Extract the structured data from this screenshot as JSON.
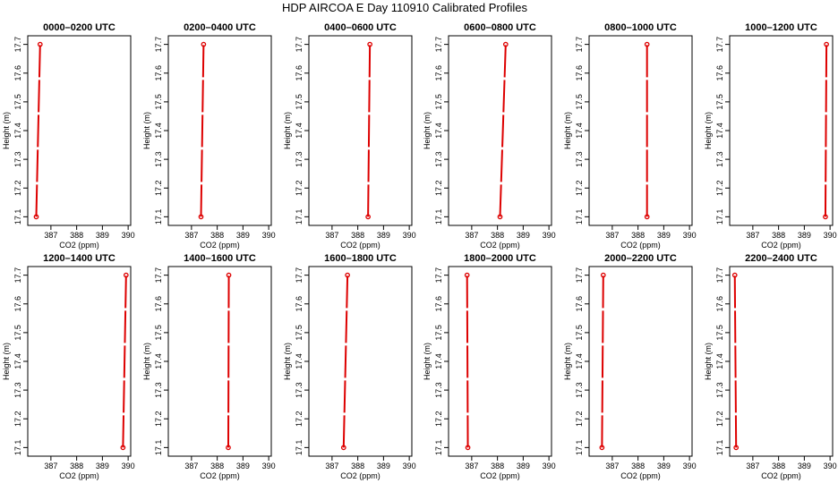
{
  "figure": {
    "title": "HDP AIRCOA E  Day 110910  Calibrated Profiles"
  },
  "chart_data": [
    {
      "type": "line",
      "title": "0000–0200 UTC",
      "xlabel": "CO2 (ppm)",
      "ylabel": "Height (m)",
      "xlim": [
        386.1,
        390.1
      ],
      "ylim": [
        17.07,
        17.73
      ],
      "x_ticks": [
        387,
        388,
        389,
        390
      ],
      "x_tick_labels": [
        "387",
        "388",
        "389",
        "390"
      ],
      "y_ticks": [
        17.1,
        17.2,
        17.3,
        17.4,
        17.5,
        17.6,
        17.7
      ],
      "y_tick_labels": [
        "17.1",
        "17.2",
        "17.3",
        "17.4",
        "17.5",
        "17.6",
        "17.7"
      ],
      "series": [
        {
          "x": [
            386.43,
            386.58
          ],
          "y": [
            17.1,
            17.7
          ],
          "color": "#dd0000"
        }
      ]
    },
    {
      "type": "line",
      "title": "0200–0400 UTC",
      "xlabel": "CO2 (ppm)",
      "ylabel": "Height (m)",
      "xlim": [
        386.1,
        390.1
      ],
      "ylim": [
        17.07,
        17.73
      ],
      "x_ticks": [
        387,
        388,
        389,
        390
      ],
      "x_tick_labels": [
        "387",
        "388",
        "389",
        "390"
      ],
      "y_ticks": [
        17.1,
        17.2,
        17.3,
        17.4,
        17.5,
        17.6,
        17.7
      ],
      "y_tick_labels": [
        "17.1",
        "17.2",
        "17.3",
        "17.4",
        "17.5",
        "17.6",
        "17.7"
      ],
      "series": [
        {
          "x": [
            387.37,
            387.47
          ],
          "y": [
            17.1,
            17.7
          ],
          "color": "#dd0000"
        }
      ]
    },
    {
      "type": "line",
      "title": "0400–0600 UTC",
      "xlabel": "CO2 (ppm)",
      "ylabel": "Height (m)",
      "xlim": [
        386.1,
        390.1
      ],
      "ylim": [
        17.07,
        17.73
      ],
      "x_ticks": [
        387,
        388,
        389,
        390
      ],
      "x_tick_labels": [
        "387",
        "388",
        "389",
        "390"
      ],
      "y_ticks": [
        17.1,
        17.2,
        17.3,
        17.4,
        17.5,
        17.6,
        17.7
      ],
      "y_tick_labels": [
        "17.1",
        "17.2",
        "17.3",
        "17.4",
        "17.5",
        "17.6",
        "17.7"
      ],
      "series": [
        {
          "x": [
            388.4,
            388.47
          ],
          "y": [
            17.1,
            17.7
          ],
          "color": "#dd0000"
        }
      ]
    },
    {
      "type": "line",
      "title": "0600–0800 UTC",
      "xlabel": "CO2 (ppm)",
      "ylabel": "Height (m)",
      "xlim": [
        386.1,
        390.1
      ],
      "ylim": [
        17.07,
        17.73
      ],
      "x_ticks": [
        387,
        388,
        389,
        390
      ],
      "x_tick_labels": [
        "387",
        "388",
        "389",
        "390"
      ],
      "y_ticks": [
        17.1,
        17.2,
        17.3,
        17.4,
        17.5,
        17.6,
        17.7
      ],
      "y_tick_labels": [
        "17.1",
        "17.2",
        "17.3",
        "17.4",
        "17.5",
        "17.6",
        "17.7"
      ],
      "series": [
        {
          "x": [
            388.1,
            388.32
          ],
          "y": [
            17.1,
            17.7
          ],
          "color": "#dd0000"
        }
      ]
    },
    {
      "type": "line",
      "title": "0800–1000 UTC",
      "xlabel": "CO2 (ppm)",
      "ylabel": "Height (m)",
      "xlim": [
        386.1,
        390.1
      ],
      "ylim": [
        17.07,
        17.73
      ],
      "x_ticks": [
        387,
        388,
        389,
        390
      ],
      "x_tick_labels": [
        "387",
        "388",
        "389",
        "390"
      ],
      "y_ticks": [
        17.1,
        17.2,
        17.3,
        17.4,
        17.5,
        17.6,
        17.7
      ],
      "y_tick_labels": [
        "17.1",
        "17.2",
        "17.3",
        "17.4",
        "17.5",
        "17.6",
        "17.7"
      ],
      "series": [
        {
          "x": [
            388.35,
            388.35
          ],
          "y": [
            17.1,
            17.7
          ],
          "color": "#dd0000"
        }
      ]
    },
    {
      "type": "line",
      "title": "1000–1200 UTC",
      "xlabel": "CO2 (ppm)",
      "ylabel": "Height (m)",
      "xlim": [
        386.1,
        390.1
      ],
      "ylim": [
        17.07,
        17.73
      ],
      "x_ticks": [
        387,
        388,
        389,
        390
      ],
      "x_tick_labels": [
        "387",
        "388",
        "389",
        "390"
      ],
      "y_ticks": [
        17.1,
        17.2,
        17.3,
        17.4,
        17.5,
        17.6,
        17.7
      ],
      "y_tick_labels": [
        "17.1",
        "17.2",
        "17.3",
        "17.4",
        "17.5",
        "17.6",
        "17.7"
      ],
      "series": [
        {
          "x": [
            389.82,
            389.86
          ],
          "y": [
            17.1,
            17.7
          ],
          "color": "#dd0000"
        }
      ]
    },
    {
      "type": "line",
      "title": "1200–1400 UTC",
      "xlabel": "CO2 (ppm)",
      "ylabel": "Height (m)",
      "xlim": [
        386.1,
        390.1
      ],
      "ylim": [
        17.07,
        17.73
      ],
      "x_ticks": [
        387,
        388,
        389,
        390
      ],
      "x_tick_labels": [
        "387",
        "388",
        "389",
        "390"
      ],
      "y_ticks": [
        17.1,
        17.2,
        17.3,
        17.4,
        17.5,
        17.6,
        17.7
      ],
      "y_tick_labels": [
        "17.1",
        "17.2",
        "17.3",
        "17.4",
        "17.5",
        "17.6",
        "17.7"
      ],
      "series": [
        {
          "x": [
            389.8,
            389.92
          ],
          "y": [
            17.1,
            17.7
          ],
          "color": "#dd0000"
        }
      ]
    },
    {
      "type": "line",
      "title": "1400–1600 UTC",
      "xlabel": "CO2 (ppm)",
      "ylabel": "Height (m)",
      "xlim": [
        386.1,
        390.1
      ],
      "ylim": [
        17.07,
        17.73
      ],
      "x_ticks": [
        387,
        388,
        389,
        390
      ],
      "x_tick_labels": [
        "387",
        "388",
        "389",
        "390"
      ],
      "y_ticks": [
        17.1,
        17.2,
        17.3,
        17.4,
        17.5,
        17.6,
        17.7
      ],
      "y_tick_labels": [
        "17.1",
        "17.2",
        "17.3",
        "17.4",
        "17.5",
        "17.6",
        "17.7"
      ],
      "series": [
        {
          "x": [
            388.43,
            388.45
          ],
          "y": [
            17.1,
            17.7
          ],
          "color": "#dd0000"
        }
      ]
    },
    {
      "type": "line",
      "title": "1600–1800 UTC",
      "xlabel": "CO2 (ppm)",
      "ylabel": "Height (m)",
      "xlim": [
        386.1,
        390.1
      ],
      "ylim": [
        17.07,
        17.73
      ],
      "x_ticks": [
        387,
        388,
        389,
        390
      ],
      "x_tick_labels": [
        "387",
        "388",
        "389",
        "390"
      ],
      "y_ticks": [
        17.1,
        17.2,
        17.3,
        17.4,
        17.5,
        17.6,
        17.7
      ],
      "y_tick_labels": [
        "17.1",
        "17.2",
        "17.3",
        "17.4",
        "17.5",
        "17.6",
        "17.7"
      ],
      "series": [
        {
          "x": [
            387.45,
            387.6
          ],
          "y": [
            17.1,
            17.7
          ],
          "color": "#dd0000"
        }
      ]
    },
    {
      "type": "line",
      "title": "1800–2000 UTC",
      "xlabel": "CO2 (ppm)",
      "ylabel": "Height (m)",
      "xlim": [
        386.1,
        390.1
      ],
      "ylim": [
        17.07,
        17.73
      ],
      "x_ticks": [
        387,
        388,
        389,
        390
      ],
      "x_tick_labels": [
        "387",
        "388",
        "389",
        "390"
      ],
      "y_ticks": [
        17.1,
        17.2,
        17.3,
        17.4,
        17.5,
        17.6,
        17.7
      ],
      "y_tick_labels": [
        "17.1",
        "17.2",
        "17.3",
        "17.4",
        "17.5",
        "17.6",
        "17.7"
      ],
      "series": [
        {
          "x": [
            386.85,
            386.82
          ],
          "y": [
            17.1,
            17.7
          ],
          "color": "#dd0000"
        }
      ]
    },
    {
      "type": "line",
      "title": "2000–2200 UTC",
      "xlabel": "CO2 (ppm)",
      "ylabel": "Height (m)",
      "xlim": [
        386.1,
        390.1
      ],
      "ylim": [
        17.07,
        17.73
      ],
      "x_ticks": [
        387,
        388,
        389,
        390
      ],
      "x_tick_labels": [
        "387",
        "388",
        "389",
        "390"
      ],
      "y_ticks": [
        17.1,
        17.2,
        17.3,
        17.4,
        17.5,
        17.6,
        17.7
      ],
      "y_tick_labels": [
        "17.1",
        "17.2",
        "17.3",
        "17.4",
        "17.5",
        "17.6",
        "17.7"
      ],
      "series": [
        {
          "x": [
            386.6,
            386.65
          ],
          "y": [
            17.1,
            17.7
          ],
          "color": "#dd0000"
        }
      ]
    },
    {
      "type": "line",
      "title": "2200–2400 UTC",
      "xlabel": "CO2 (ppm)",
      "ylabel": "Height (m)",
      "xlim": [
        386.1,
        390.1
      ],
      "ylim": [
        17.07,
        17.73
      ],
      "x_ticks": [
        387,
        388,
        389,
        390
      ],
      "x_tick_labels": [
        "387",
        "388",
        "389",
        "390"
      ],
      "y_ticks": [
        17.1,
        17.2,
        17.3,
        17.4,
        17.5,
        17.6,
        17.7
      ],
      "y_tick_labels": [
        "17.1",
        "17.2",
        "17.3",
        "17.4",
        "17.5",
        "17.6",
        "17.7"
      ],
      "series": [
        {
          "x": [
            386.35,
            386.3
          ],
          "y": [
            17.1,
            17.7
          ],
          "color": "#dd0000"
        }
      ]
    }
  ]
}
